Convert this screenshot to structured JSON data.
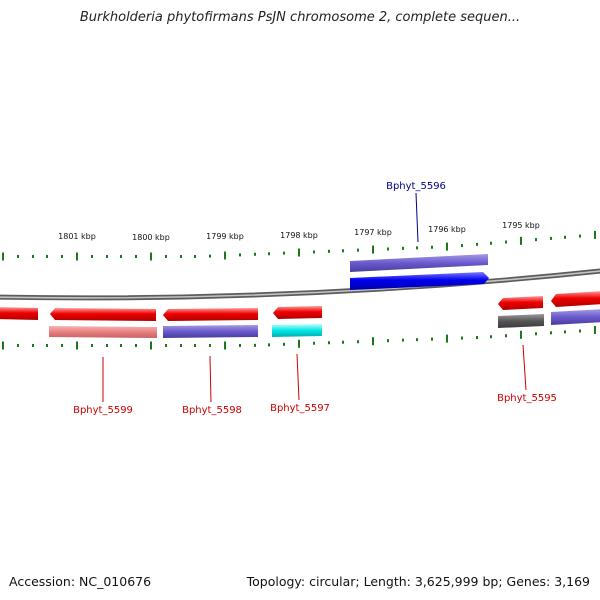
{
  "title": "Burkholderia phytofirmans PsJN chromosome 2, complete sequen...",
  "footer": {
    "accession": "Accession: NC_010676",
    "summary": "Topology: circular; Length: 3,625,999 bp; Genes: 3,169"
  },
  "scale_labels": [
    "1801 kbp",
    "1800 kbp",
    "1799 kbp",
    "1798 kbp",
    "1797 kbp",
    "1796 kbp",
    "1795 kbp"
  ],
  "gene_labels": {
    "b5596": "Bphyt_5596",
    "b5599": "Bphyt_5599",
    "b5598": "Bphyt_5598",
    "b5597": "Bphyt_5597",
    "b5595": "Bphyt_5595"
  },
  "colors": {
    "forward_gene": "#0000ee",
    "reverse_gene": "#ee0000",
    "label_forward": "#00008b",
    "label_reverse": "#cc0000",
    "tick": "#1a7a1a",
    "backbone": "#888888"
  }
}
